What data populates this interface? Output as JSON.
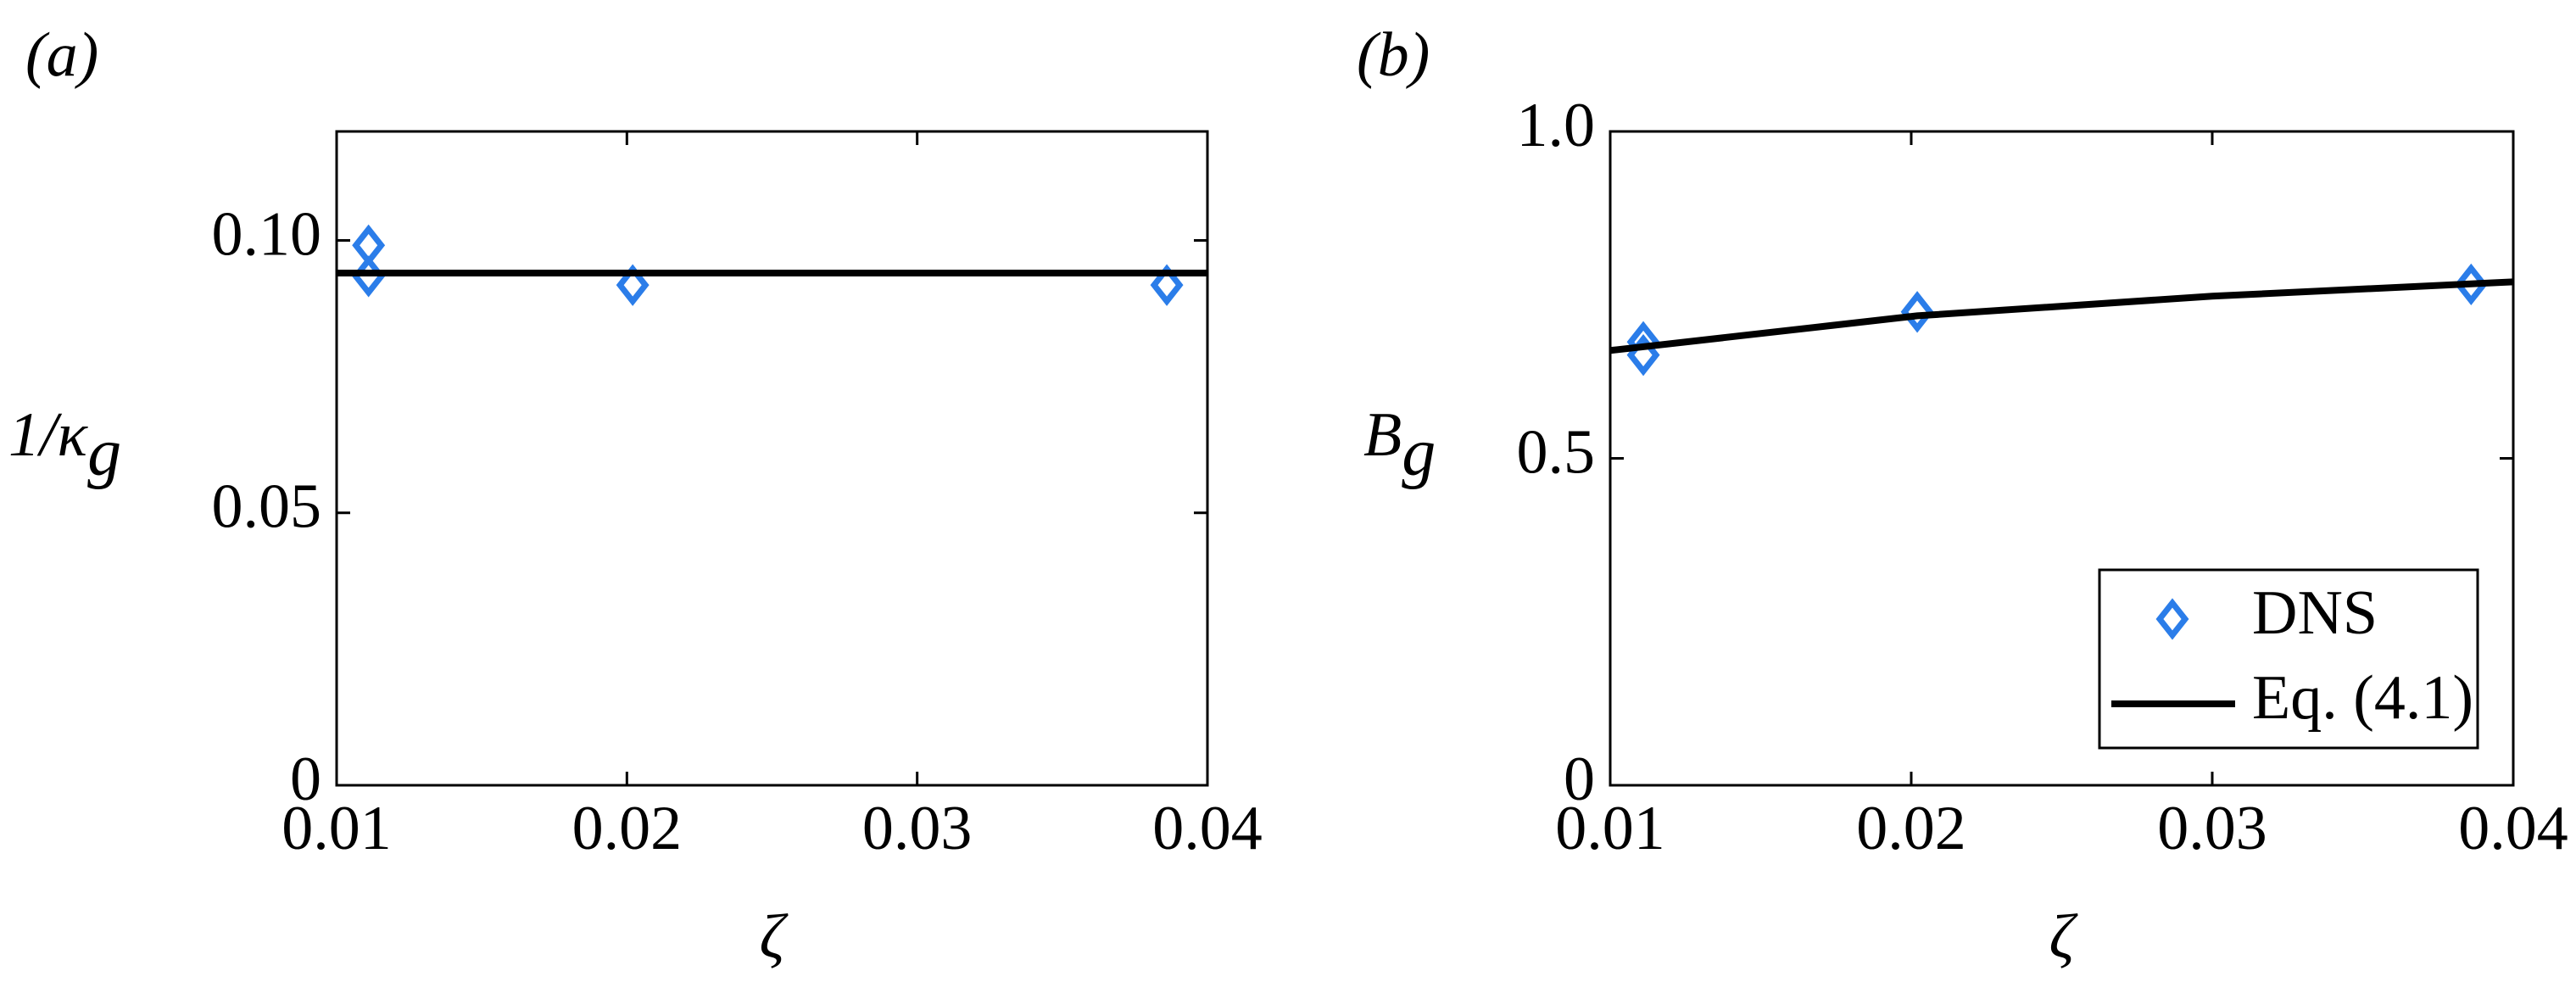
{
  "chart_data": [
    {
      "type": "line",
      "panel_label": "(a)",
      "ylabel": {
        "main": "1/κ",
        "sub": "g"
      },
      "xlabel": "ζ",
      "xlim": [
        0.01,
        0.04
      ],
      "xticks": [
        0.01,
        0.02,
        0.03,
        0.04
      ],
      "ylim": [
        0,
        0.12
      ],
      "yticks": [
        0,
        0.05,
        {
          "value": 0.1,
          "label": "0.10"
        }
      ],
      "series": [
        {
          "mode": "markers",
          "color": "#2b7de9",
          "x": [
            0.0111,
            0.0111,
            0.0202,
            0.0386
          ],
          "values": [
            0.0991,
            0.0934,
            0.0918,
            0.0918
          ]
        },
        {
          "mode": "line",
          "color": "#000000",
          "x": [
            0.01,
            0.04
          ],
          "values": [
            0.094,
            0.094
          ]
        }
      ]
    },
    {
      "type": "line",
      "panel_label": "(b)",
      "ylabel": {
        "main": "B",
        "sub": "g"
      },
      "xlabel": "ζ",
      "xlim": [
        0.01,
        0.04
      ],
      "xticks": [
        0.01,
        0.02,
        0.03,
        0.04
      ],
      "ylim": [
        0,
        1
      ],
      "yticks": [
        0,
        0.5,
        {
          "value": 1,
          "label": "1.0"
        }
      ],
      "legend": "lower right",
      "series": [
        {
          "name": "DNS",
          "mode": "markers",
          "color": "#2b7de9",
          "x": [
            0.0111,
            0.0111,
            0.0202,
            0.0386
          ],
          "values": [
            0.678,
            0.658,
            0.724,
            0.766
          ]
        },
        {
          "name": "Eq. (4.1)",
          "mode": "line",
          "color": "#000000",
          "x": [
            0.01,
            0.0202,
            0.03,
            0.04
          ],
          "values": [
            0.665,
            0.718,
            0.748,
            0.77
          ]
        }
      ]
    }
  ]
}
